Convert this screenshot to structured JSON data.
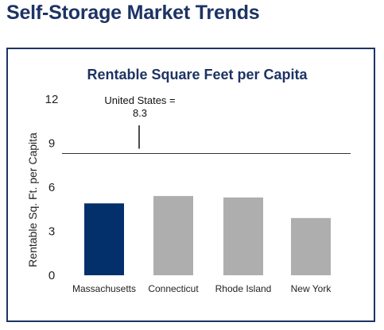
{
  "page": {
    "title": "Self-Storage Market Trends"
  },
  "colors": {
    "title": "#1d3364",
    "highlight_bar": "#03306b",
    "other_bar": "#aeaeae",
    "reference_line": "#333333"
  },
  "chart_data": {
    "type": "bar",
    "title": "Rentable Square Feet per Capita",
    "xlabel": "",
    "ylabel": "Rentable Sq. Ft. per Capita",
    "categories": [
      "Massachusetts",
      "Connecticut",
      "Rhode Island",
      "New York"
    ],
    "values": [
      4.9,
      5.4,
      5.3,
      3.9
    ],
    "highlight": "Massachusetts",
    "ylim": [
      0,
      12
    ],
    "yticks": [
      "0",
      "3",
      "6",
      "9",
      "12"
    ],
    "ytick_values": [
      0,
      3,
      6,
      9,
      12
    ],
    "grid": false,
    "reference_line": {
      "value": 8.3,
      "label_line1": "United States =",
      "label_line2": "8.3"
    }
  }
}
